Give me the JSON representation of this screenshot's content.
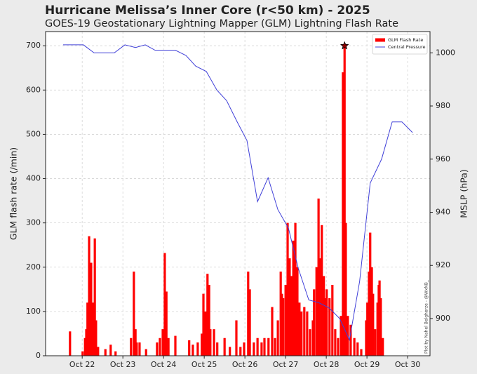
{
  "chart_data": {
    "type": "bar",
    "title": "Hurricane Melissa’s Inner Core (r<50 km) - 2025",
    "subtitle": "GOES-19 Geostationary Lightning Mapper (GLM) Lightning Flash Rate",
    "ylabel": "GLM flash rate (/min)",
    "y2label": "MSLP (hPa)",
    "annotation": "Plot by Nahel Belgherze - @WxNB_",
    "xlim": [
      21.1,
      30.55
    ],
    "xticks": [
      {
        "value": 22,
        "label": "Oct 22"
      },
      {
        "value": 23,
        "label": "Oct 23"
      },
      {
        "value": 24,
        "label": "Oct 24"
      },
      {
        "value": 25,
        "label": "Oct 25"
      },
      {
        "value": 26,
        "label": "Oct 26"
      },
      {
        "value": 27,
        "label": "Oct 27"
      },
      {
        "value": 28,
        "label": "Oct 28"
      },
      {
        "value": 29,
        "label": "Oct 29"
      },
      {
        "value": 30,
        "label": "Oct 30"
      }
    ],
    "ylim": [
      0,
      732
    ],
    "yticks": [
      0,
      100,
      200,
      300,
      400,
      500,
      600,
      700
    ],
    "y2lim": [
      886,
      1008
    ],
    "y2ticks": [
      900,
      920,
      940,
      960,
      980,
      1000
    ],
    "grid": true,
    "legend": "upper right",
    "mark_peak": true,
    "series": [
      {
        "name": "GLM Flash Rate",
        "color": "#ff0000",
        "x": [
          21.7,
          22.01,
          22.07,
          22.1,
          22.13,
          22.17,
          22.2,
          22.22,
          22.26,
          22.27,
          22.31,
          22.34,
          22.39,
          22.57,
          22.7,
          22.82,
          23.2,
          23.27,
          23.31,
          23.34,
          23.41,
          23.57,
          23.84,
          23.91,
          23.98,
          24.03,
          24.07,
          24.12,
          24.29,
          24.63,
          24.72,
          24.84,
          24.94,
          24.98,
          25.03,
          25.08,
          25.12,
          25.15,
          25.24,
          25.32,
          25.5,
          25.63,
          25.79,
          25.89,
          25.98,
          26.08,
          26.12,
          26.22,
          26.31,
          26.41,
          26.48,
          26.58,
          26.67,
          26.74,
          26.81,
          26.88,
          26.91,
          26.94,
          27.0,
          27.05,
          27.1,
          27.15,
          27.19,
          27.24,
          27.29,
          27.34,
          27.39,
          27.46,
          27.53,
          27.6,
          27.67,
          27.7,
          27.76,
          27.81,
          27.84,
          27.89,
          27.94,
          27.98,
          28.01,
          28.08,
          28.15,
          28.22,
          28.29,
          28.36,
          28.41,
          28.45,
          28.48,
          28.53,
          28.6,
          28.69,
          28.77,
          28.86,
          28.98,
          29.01,
          29.05,
          29.08,
          29.12,
          29.15,
          29.2,
          29.26,
          29.29,
          29.31,
          29.34,
          29.39
        ],
        "values": [
          55,
          10,
          40,
          60,
          120,
          270,
          180,
          210,
          90,
          120,
          265,
          80,
          20,
          15,
          25,
          10,
          40,
          190,
          60,
          30,
          30,
          15,
          30,
          40,
          60,
          232,
          145,
          40,
          45,
          35,
          25,
          30,
          50,
          140,
          100,
          185,
          160,
          60,
          60,
          30,
          40,
          20,
          80,
          20,
          30,
          190,
          150,
          30,
          40,
          30,
          40,
          40,
          110,
          40,
          80,
          190,
          140,
          130,
          160,
          300,
          220,
          180,
          260,
          300,
          200,
          120,
          100,
          110,
          100,
          60,
          80,
          150,
          200,
          355,
          220,
          295,
          180,
          130,
          150,
          130,
          160,
          60,
          40,
          90,
          640,
          700,
          300,
          90,
          70,
          40,
          30,
          15,
          80,
          120,
          190,
          278,
          200,
          140,
          60,
          120,
          160,
          170,
          130,
          40
        ]
      },
      {
        "name": "Central Pressure",
        "color": "#4040d8",
        "type": "line",
        "axis": "y2",
        "x": [
          21.53,
          22.03,
          22.29,
          22.79,
          23.05,
          23.31,
          23.55,
          23.79,
          24.29,
          24.55,
          24.79,
          25.05,
          25.31,
          25.55,
          25.81,
          26.05,
          26.31,
          26.57,
          26.81,
          27.07,
          27.31,
          27.57,
          27.81,
          28.07,
          28.33,
          28.57,
          28.82,
          29.08,
          29.36,
          29.62,
          29.86,
          30.12
        ],
        "values": [
          1003,
          1003,
          1000,
          1000,
          1003,
          1002,
          1003,
          1001,
          1001,
          999,
          995,
          993,
          986,
          982,
          974,
          967,
          944,
          953,
          941,
          934,
          919,
          907,
          906,
          904,
          900,
          892,
          914,
          951,
          960,
          974,
          974,
          970
        ]
      }
    ]
  }
}
